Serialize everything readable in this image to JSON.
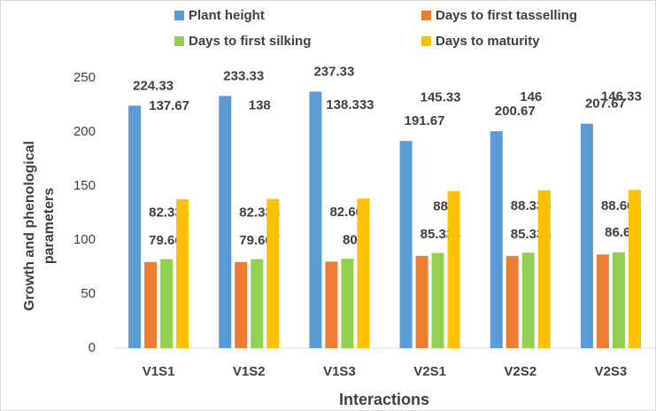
{
  "chart_data": {
    "type": "bar",
    "x_label": "Interactions",
    "y_label": [
      "Growth and phenological",
      "parameters"
    ],
    "categories": [
      "V1S1",
      "V1S2",
      "V1S3",
      "V2S1",
      "V2S2",
      "V2S3"
    ],
    "series": [
      {
        "name": "Plant height",
        "color": "#5b9bd5",
        "values": [
          224.33,
          233.33,
          237.33,
          191.67,
          200.67,
          207.67
        ]
      },
      {
        "name": "Days to first tasselling",
        "color": "#ed7d31",
        "values": [
          79.667,
          79.667,
          80,
          85.333,
          85.333,
          86.66
        ]
      },
      {
        "name": "Days to first silking",
        "color": "#92d050",
        "values": [
          82.333,
          82.333,
          82.667,
          88,
          88.333,
          88.667
        ]
      },
      {
        "name": "Days to maturity",
        "color": "#ffc000",
        "values": [
          137.67,
          138,
          138.333,
          145.33,
          146,
          146.33
        ]
      }
    ],
    "ylim": [
      0,
      250
    ],
    "yticks": [
      0,
      50,
      100,
      150,
      200,
      250
    ],
    "grid": false,
    "legend": "top"
  }
}
